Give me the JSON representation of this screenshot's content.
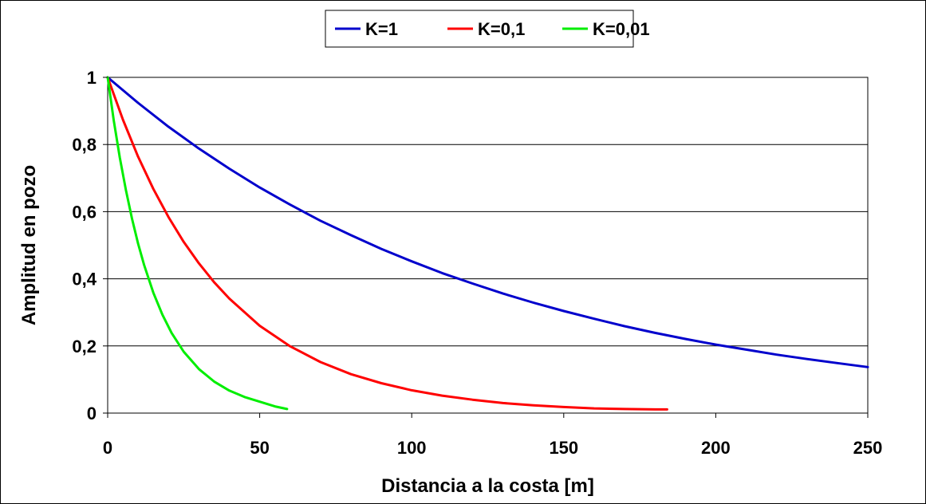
{
  "chart_data": {
    "type": "line",
    "xlabel": "Distancia a la costa [m]",
    "ylabel": "Amplitud en pozo",
    "xlim": [
      0,
      250
    ],
    "ylim": [
      0,
      1
    ],
    "x_ticks": [
      0,
      50,
      100,
      150,
      200,
      250
    ],
    "x_tick_labels": [
      "0",
      "50",
      "100",
      "150",
      "200",
      "250"
    ],
    "y_ticks": [
      0,
      0.2,
      0.4,
      0.6,
      0.8,
      1
    ],
    "y_tick_labels": [
      "0",
      "0,2",
      "0,4",
      "0,6",
      "0,8",
      "1"
    ],
    "grid": "horizontal",
    "legend_position": "top-center",
    "series": [
      {
        "name": "K=1",
        "color": "#0000cc",
        "x": [
          0,
          10,
          20,
          30,
          40,
          50,
          60,
          70,
          80,
          90,
          100,
          110,
          120,
          130,
          140,
          150,
          160,
          170,
          180,
          190,
          200,
          210,
          220,
          230,
          240,
          250
        ],
        "y": [
          1.0,
          0.924,
          0.853,
          0.788,
          0.728,
          0.672,
          0.621,
          0.573,
          0.53,
          0.489,
          0.452,
          0.417,
          0.386,
          0.356,
          0.329,
          0.304,
          0.281,
          0.259,
          0.239,
          0.221,
          0.204,
          0.189,
          0.174,
          0.161,
          0.149,
          0.137
        ]
      },
      {
        "name": "K=0,1",
        "color": "#ff0000",
        "x": [
          0,
          5,
          10,
          15,
          20,
          25,
          30,
          35,
          40,
          50,
          60,
          70,
          80,
          90,
          100,
          110,
          120,
          130,
          140,
          150,
          160,
          170,
          180,
          184
        ],
        "y": [
          1.0,
          0.874,
          0.764,
          0.668,
          0.584,
          0.51,
          0.446,
          0.39,
          0.341,
          0.26,
          0.199,
          0.152,
          0.116,
          0.089,
          0.068,
          0.052,
          0.04,
          0.03,
          0.023,
          0.018,
          0.014,
          0.012,
          0.011,
          0.011
        ]
      },
      {
        "name": "K=0,01",
        "color": "#00ee00",
        "x": [
          0,
          2,
          4,
          6,
          8,
          10,
          12,
          15,
          18,
          21,
          25,
          30,
          35,
          40,
          45,
          50,
          55,
          59
        ],
        "y": [
          1.0,
          0.872,
          0.761,
          0.664,
          0.579,
          0.505,
          0.441,
          0.359,
          0.293,
          0.239,
          0.183,
          0.131,
          0.094,
          0.067,
          0.048,
          0.034,
          0.02,
          0.012
        ]
      }
    ]
  }
}
